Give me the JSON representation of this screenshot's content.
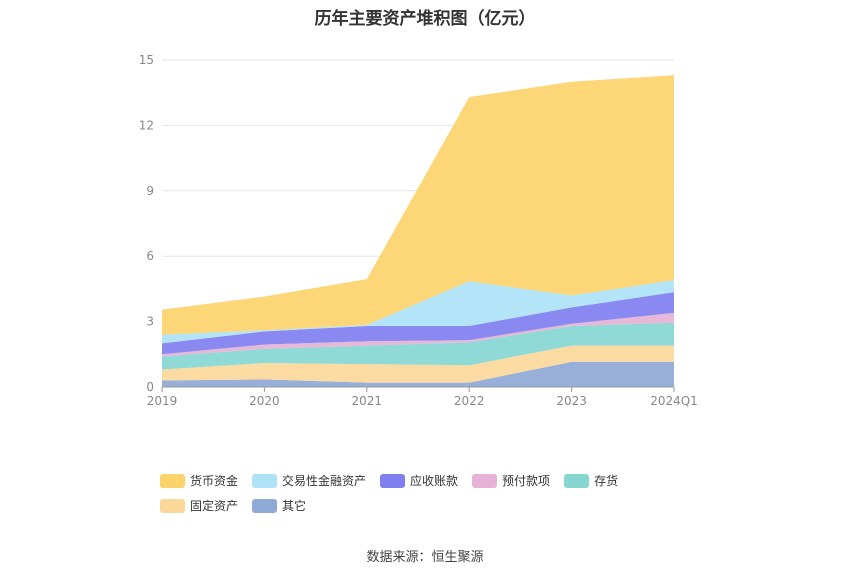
{
  "title": "历年主要资产堆积图（亿元）",
  "source": "数据来源：恒生聚源",
  "chart_data": {
    "type": "area",
    "stacked": true,
    "categories": [
      "2019",
      "2020",
      "2021",
      "2022",
      "2023",
      "2024Q1"
    ],
    "ylim": [
      0,
      15
    ],
    "yticks": [
      0,
      3,
      6,
      9,
      12,
      15
    ],
    "grid": true,
    "legend_position": "bottom",
    "series": [
      {
        "name": "其它",
        "color": "#8fa9d6",
        "values": [
          0.3,
          0.35,
          0.2,
          0.2,
          1.15,
          1.15
        ]
      },
      {
        "name": "固定资产",
        "color": "#fbd89a",
        "values": [
          0.5,
          0.75,
          0.85,
          0.8,
          0.75,
          0.75
        ]
      },
      {
        "name": "存货",
        "color": "#86d6d2",
        "values": [
          0.6,
          0.65,
          0.85,
          1.05,
          0.9,
          1.05
        ]
      },
      {
        "name": "预付款项",
        "color": "#e6b2d6",
        "values": [
          0.1,
          0.2,
          0.2,
          0.1,
          0.1,
          0.45
        ]
      },
      {
        "name": "应收账款",
        "color": "#7f7ff0",
        "values": [
          0.5,
          0.6,
          0.7,
          0.65,
          0.75,
          0.95
        ]
      },
      {
        "name": "交易性金融资产",
        "color": "#aee2f7",
        "values": [
          0.4,
          0.05,
          0.05,
          2.05,
          0.55,
          0.55
        ]
      },
      {
        "name": "货币资金",
        "color": "#fcd26b",
        "values": [
          1.15,
          1.55,
          2.1,
          8.45,
          9.8,
          9.4
        ]
      }
    ]
  }
}
